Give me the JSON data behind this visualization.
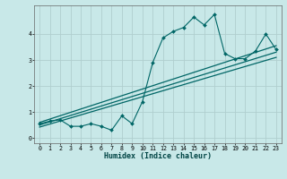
{
  "xlabel": "Humidex (Indice chaleur)",
  "ylabel": "",
  "bg_color": "#c8e8e8",
  "grid_color": "#b0cece",
  "line_color": "#006666",
  "xlim": [
    -0.5,
    23.5
  ],
  "ylim": [
    -0.2,
    5.1
  ],
  "xticks": [
    0,
    1,
    2,
    3,
    4,
    5,
    6,
    7,
    8,
    9,
    10,
    11,
    12,
    13,
    14,
    15,
    16,
    17,
    18,
    19,
    20,
    21,
    22,
    23
  ],
  "yticks": [
    0,
    1,
    2,
    3,
    4
  ],
  "noisy_x": [
    0,
    1,
    2,
    3,
    4,
    5,
    6,
    7,
    8,
    9,
    10,
    11,
    12,
    13,
    14,
    15,
    16,
    17,
    18,
    19,
    20,
    21,
    22,
    23
  ],
  "noisy_y": [
    0.55,
    0.65,
    0.7,
    0.45,
    0.45,
    0.55,
    0.45,
    0.3,
    0.85,
    0.55,
    1.4,
    2.9,
    3.85,
    4.1,
    4.25,
    4.65,
    4.35,
    4.75,
    3.25,
    3.05,
    3.05,
    3.35,
    4.0,
    3.4
  ],
  "line1_x": [
    0,
    23
  ],
  "line1_y": [
    0.6,
    3.55
  ],
  "line2_x": [
    0,
    23
  ],
  "line2_y": [
    0.5,
    3.3
  ],
  "line3_x": [
    0,
    23
  ],
  "line3_y": [
    0.42,
    3.1
  ],
  "xlabel_fontsize": 6.0,
  "tick_fontsize": 4.8,
  "ylabel_fontsize": 5.5
}
